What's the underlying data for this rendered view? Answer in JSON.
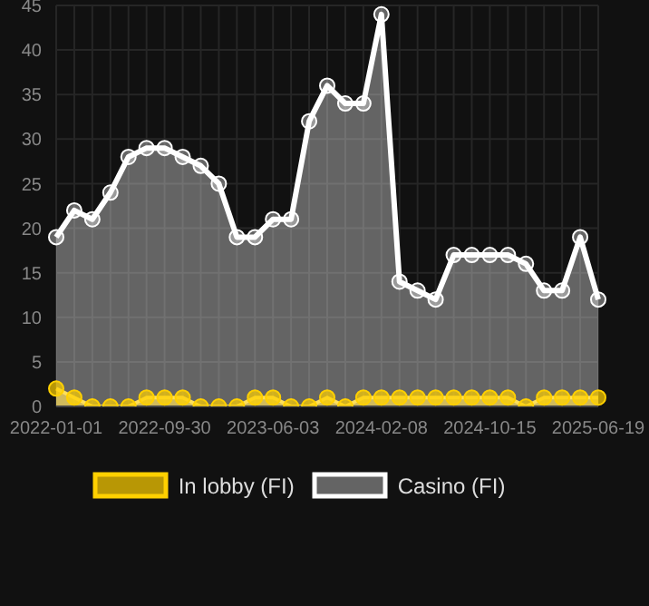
{
  "chart_data": {
    "type": "area",
    "categories": [
      "2022-01-01",
      null,
      null,
      null,
      null,
      null,
      "2022-09-30",
      null,
      null,
      null,
      null,
      null,
      "2023-06-03",
      null,
      null,
      null,
      null,
      null,
      "2024-02-08",
      null,
      null,
      null,
      null,
      null,
      "2024-10-15",
      null,
      null,
      null,
      null,
      null,
      "2025-06-19"
    ],
    "series": [
      {
        "name": "In lobby (FI)",
        "color": "#ffd000",
        "values": [
          2,
          1,
          0,
          0,
          0,
          1,
          1,
          1,
          0,
          0,
          0,
          1,
          1,
          0,
          0,
          1,
          0,
          1,
          1,
          1,
          1,
          1,
          1,
          1,
          1,
          1,
          0,
          1,
          1,
          1,
          1
        ]
      },
      {
        "name": "Casino (FI)",
        "color": "#ffffff",
        "values": [
          19,
          22,
          21,
          24,
          28,
          29,
          29,
          28,
          27,
          25,
          19,
          19,
          21,
          21,
          32,
          36,
          34,
          34,
          44,
          14,
          13,
          12,
          17,
          17,
          17,
          17,
          16,
          13,
          13,
          19,
          12
        ]
      }
    ],
    "ylim": [
      0,
      45
    ],
    "yticks": [
      0,
      5,
      10,
      15,
      20,
      25,
      30,
      35,
      40,
      45
    ],
    "grid": true,
    "legend": "bottom",
    "marker": "circle",
    "line_style": "solid"
  }
}
